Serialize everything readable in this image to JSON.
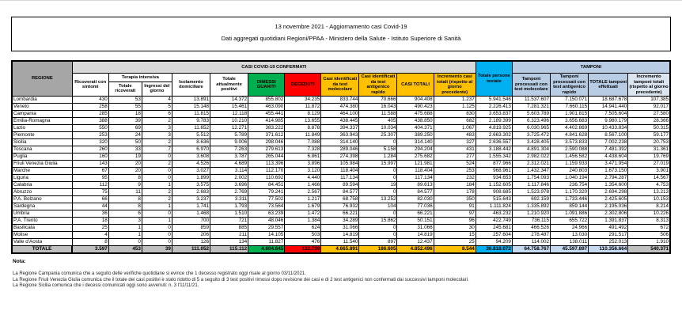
{
  "header": {
    "title": "13 novembre 2021 - Aggiornamento casi Covid-19",
    "subtitle": "Dati aggregati quotidiani Regioni/PPAA - Ministero della Salute - Istituto Superiore di Sanità"
  },
  "table": {
    "groups": {
      "regione": "REGIONE",
      "confermati": "CASI COVID-19 CONFERMATI",
      "terapia_intensiva": "Terapia intensiva",
      "persone_testate": "Totale persone testate",
      "tamponi": "TAMPONI"
    },
    "columns": {
      "ricoverati": "Ricoverati con sintomi",
      "ti_totale": "Totale ricoverati",
      "ti_ingressi": "Ingressi del giorno",
      "isolamento": "Isolamento domiciliare",
      "attualmente_positivi": "Totale attualmente positivi",
      "dimessi_guariti": "DIMESSI GUARITI",
      "deceduti": "DECEDUTI",
      "casi_molecolare": "Casi identificati da test molecolare",
      "casi_antigenico": "Casi identificati da test antigenico rapido",
      "casi_totali": "CASI TOTALI",
      "incremento_casi": "Incremento casi totali (rispetto al giorno precedente)",
      "tamponi_molecolare": "Tamponi processati con test molecolare",
      "tamponi_antigenico": "Tamponi processati con test antigenico rapido",
      "tamponi_totale": "TOTALE tamponi effettuati",
      "incremento_tamponi": "Incremento tamponi totali (rispetto al giorno precedente)"
    },
    "rows": [
      {
        "name": "Lombardia",
        "values": [
          "430",
          "53",
          "4",
          "13.891",
          "14.372",
          "855.802",
          "34.235",
          "833.744",
          "70.666",
          "904.408",
          "1.237",
          "5.941.546",
          "11.537.607",
          "7.150.071",
          "18.687.678",
          "107.385"
        ]
      },
      {
        "name": "Veneto",
        "values": [
          "258",
          "55",
          "5",
          "15.148",
          "15.461",
          "463.090",
          "11.872",
          "474.380",
          "16.043",
          "490.423",
          "1.125",
          "2.226.413",
          "7.281.321",
          "7.660.115",
          "14.941.440",
          "92.017"
        ]
      },
      {
        "name": "Campania",
        "values": [
          "285",
          "18",
          "6",
          "11.815",
          "12.118",
          "455.441",
          "8.129",
          "464.100",
          "11.588",
          "475.688",
          "830",
          "3.653.837",
          "5.603.789",
          "1.901.815",
          "7.505.604",
          "27.580"
        ]
      },
      {
        "name": "Emilia-Romagna",
        "values": [
          "388",
          "39",
          "2",
          "9.783",
          "10.210",
          "414.985",
          "13.655",
          "438.445",
          "405",
          "438.850",
          "682",
          "2.189.399",
          "6.323.496",
          "3.656.683",
          "9.980.179",
          "28.366"
        ]
      },
      {
        "name": "Lazio",
        "values": [
          "550",
          "69",
          "3",
          "11.652",
          "12.271",
          "383.222",
          "8.878",
          "394.337",
          "10.034",
          "404.371",
          "1.067",
          "4.819.925",
          "6.030.965",
          "4.402.869",
          "10.433.834",
          "50.315"
        ]
      },
      {
        "name": "Piemonte",
        "values": [
          "253",
          "24",
          "3",
          "5.512",
          "5.789",
          "371.612",
          "11.849",
          "363.943",
          "25.307",
          "389.250",
          "483",
          "2.663.302",
          "3.725.472",
          "4.841.628",
          "8.567.100",
          "59.177"
        ]
      },
      {
        "name": "Sicilia",
        "values": [
          "320",
          "50",
          "2",
          "8.636",
          "9.006",
          "298.046",
          "7.088",
          "314.140",
          "0",
          "314.140",
          "327",
          "2.636.557",
          "3.428.405",
          "3.573.833",
          "7.002.238",
          "20.753"
        ]
      },
      {
        "name": "Toscana",
        "values": [
          "260",
          "33",
          "7",
          "6.970",
          "7.263",
          "279.613",
          "7.328",
          "289.046",
          "5.158",
          "294.204",
          "431",
          "3.188.442",
          "4.891.304",
          "2.590.088",
          "7.481.392",
          "31.361"
        ]
      },
      {
        "name": "Puglia",
        "values": [
          "160",
          "19",
          "0",
          "3.608",
          "3.787",
          "265.044",
          "6.861",
          "274.398",
          "1.284",
          "275.682",
          "277",
          "1.555.342",
          "2.982.022",
          "1.456.582",
          "4.438.604",
          "19.769"
        ]
      },
      {
        "name": "Friuli Venezia Giulia",
        "values": [
          "143",
          "20",
          "2",
          "4.526",
          "4.689",
          "113.396",
          "3.896",
          "105.984",
          "15.997",
          "121.981",
          "524",
          "877.966",
          "2.312.021",
          "1.159.933",
          "3.471.954",
          "27.019"
        ]
      },
      {
        "name": "Marche",
        "values": [
          "67",
          "20",
          "0",
          "3.027",
          "3.114",
          "112.170",
          "3.120",
          "118.404",
          "0",
          "118.404",
          "253",
          "968.961",
          "1.432.347",
          "240.803",
          "1.673.150",
          "3.901"
        ]
      },
      {
        "name": "Liguria",
        "values": [
          "95",
          "8",
          "0",
          "1.899",
          "2.002",
          "110.692",
          "4.440",
          "117.134",
          "0",
          "117.134",
          "232",
          "934.653",
          "1.754.093",
          "1.040.194",
          "2.794.287",
          "14.567"
        ]
      },
      {
        "name": "Calabria",
        "values": [
          "112",
          "9",
          "1",
          "3.575",
          "3.696",
          "84.451",
          "1.466",
          "89.594",
          "19",
          "89.613",
          "184",
          "1.152.605",
          "1.117.846",
          "236.754",
          "1.354.600",
          "4.753"
        ]
      },
      {
        "name": "Abruzzo",
        "values": [
          "75",
          "11",
          "2",
          "2.683",
          "2.769",
          "79.241",
          "2.567",
          "84.577",
          "0",
          "84.577",
          "178",
          "908.685",
          "1.523.978",
          "1.170.320",
          "2.694.298",
          "13.213"
        ]
      },
      {
        "name": "P.A. Bolzano",
        "values": [
          "66",
          "8",
          "2",
          "3.237",
          "3.311",
          "77.502",
          "1.217",
          "68.758",
          "13.252",
          "82.030",
          "350",
          "515.643",
          "692.159",
          "1.733.446",
          "2.425.605",
          "10.153"
        ]
      },
      {
        "name": "Sardegna",
        "values": [
          "44",
          "8",
          "1",
          "1.741",
          "1.793",
          "73.564",
          "1.679",
          "76.932",
          "104",
          "77.036",
          "91",
          "1.111.824",
          "1.335.892",
          "859.144",
          "2.195.036",
          "8.214"
        ]
      },
      {
        "name": "Umbria",
        "values": [
          "36",
          "6",
          "0",
          "1.468",
          "1.510",
          "63.239",
          "1.472",
          "66.221",
          "0",
          "66.221",
          "97",
          "463.232",
          "1.210.920",
          "1.091.886",
          "2.302.806",
          "10.226"
        ]
      },
      {
        "name": "P.A. Trento",
        "values": [
          "18",
          "3",
          "1",
          "700",
          "721",
          "48.046",
          "1.384",
          "34.289",
          "15.862",
          "50.151",
          "96",
          "422.749",
          "736.115",
          "655.722",
          "1.391.837",
          "8.313"
        ]
      },
      {
        "name": "Basilicata",
        "values": [
          "25",
          "1",
          "0",
          "859",
          "885",
          "29.557",
          "624",
          "31.066",
          "0",
          "31.066",
          "30",
          "245.681",
          "466.526",
          "24.966",
          "491.492",
          "672"
        ]
      },
      {
        "name": "Molise",
        "values": [
          "4",
          "1",
          "0",
          "206",
          "211",
          "14.105",
          "503",
          "14.819",
          "0",
          "14.819",
          "15",
          "257.604",
          "278.487",
          "13.030",
          "291.517",
          "506"
        ]
      },
      {
        "name": "Valle d'Aosta",
        "values": [
          "8",
          "0",
          "0",
          "126",
          "134",
          "11.827",
          "476",
          "11.540",
          "897",
          "12.437",
          "25",
          "94.209",
          "114.002",
          "138.011",
          "252.013",
          "1.910"
        ]
      }
    ],
    "totals": {
      "label": "TOTALE",
      "values": [
        "3.597",
        "453",
        "39",
        "111.052",
        "115.112",
        "4.604.645",
        "132.739",
        "4.665.891",
        "186.605",
        "4.852.496",
        "8.544",
        "36.818.072",
        "64.758.767",
        "45.597.897",
        "110.356.664",
        "540.371"
      ]
    }
  },
  "notes": {
    "heading": "Nota:",
    "lines": [
      "La Regione Campania comunica che a seguito delle verifiche quotidiane si evince che 1 decesso registrato oggi risale al giorno 03/11/2021.",
      "La Regione Friuli Venezia Giulia comunica che il totale dei casi positivi è stato ridotto di 5 a seguito di 3 test positivi rimossi dopo revisione dei casi e di 2 test antigenici non confermati dai successivi tamponi molecolari.",
      "La Regione Sicilia comunica che i decessi comunicati oggi sono avvenuti: n. 3 l'11/11/21."
    ]
  },
  "colors": {
    "header_gray": "#a6a6a6",
    "band_gray": "#d9d9d9",
    "green": "#00b050",
    "red": "#ff0000",
    "yellow": "#ffc000",
    "cyan": "#00b0f0",
    "tamponi_blue": "#b8cce4",
    "totals_blue": "#c5d9f1",
    "totals_gray": "#bfbfbf"
  }
}
